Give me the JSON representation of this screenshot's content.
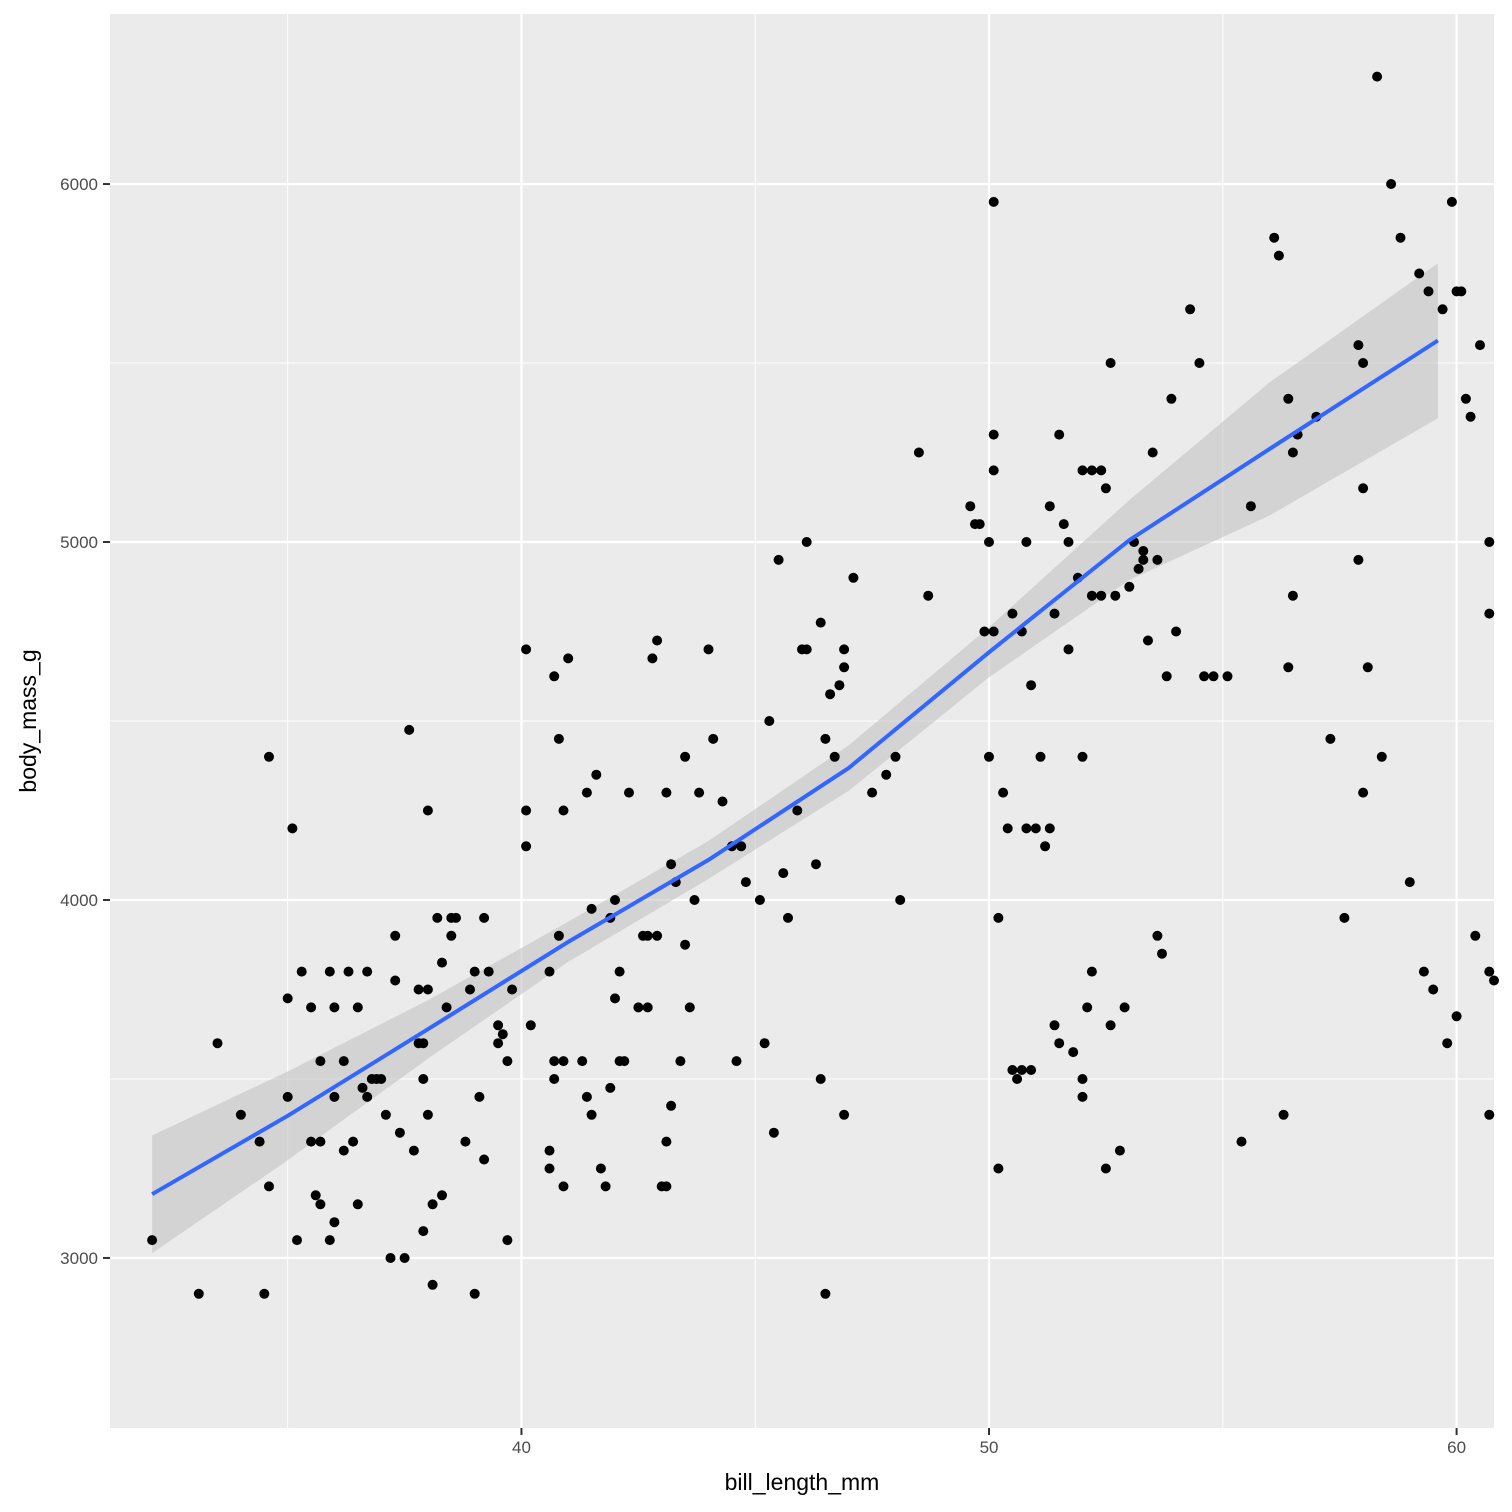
{
  "chart_data": {
    "type": "scatter",
    "xlabel": "bill_length_mm",
    "ylabel": "body_mass_g",
    "xlim": [
      31.2,
      60.8
    ],
    "ylim": [
      2525,
      6475
    ],
    "x_ticks": [
      40,
      50,
      60
    ],
    "y_ticks": [
      3000,
      4000,
      5000,
      6000
    ],
    "x_minor_ticks": [
      35,
      45,
      55
    ],
    "y_minor_ticks": [
      3500,
      4500,
      5500
    ],
    "grid": true,
    "colors": {
      "panel": "#ebebeb",
      "grid": "#ffffff",
      "points": "#000000",
      "smooth_line": "#3366ff",
      "ribbon": "#bfbfbf"
    },
    "smooth": {
      "method": "linear",
      "x": [
        32.1,
        35.0,
        38.0,
        41.0,
        44.0,
        47.0,
        50.0,
        53.0,
        56.0,
        59.6
      ],
      "y": [
        3178,
        3397,
        3639,
        3883,
        4112,
        4369,
        4692,
        5005,
        5260,
        5563
      ],
      "lower": [
        3013,
        3273,
        3557,
        3827,
        4059,
        4305,
        4622,
        4894,
        5074,
        5346
      ],
      "upper": [
        3342,
        3521,
        3720,
        3939,
        4165,
        4432,
        4762,
        5117,
        5446,
        5779
      ]
    },
    "points": [
      [
        32.1,
        3050
      ],
      [
        33.1,
        2900
      ],
      [
        33.5,
        3600
      ],
      [
        34.0,
        3400
      ],
      [
        34.4,
        3325
      ],
      [
        34.5,
        2900
      ],
      [
        34.6,
        4400
      ],
      [
        34.6,
        3200
      ],
      [
        35.0,
        3450
      ],
      [
        35.0,
        3725
      ],
      [
        35.1,
        4200
      ],
      [
        35.2,
        3050
      ],
      [
        35.3,
        3800
      ],
      [
        35.5,
        3700
      ],
      [
        35.5,
        3325
      ],
      [
        35.6,
        3175
      ],
      [
        35.7,
        3150
      ],
      [
        35.7,
        3325
      ],
      [
        35.7,
        3550
      ],
      [
        35.9,
        3050
      ],
      [
        35.9,
        3800
      ],
      [
        36.0,
        3100
      ],
      [
        36.0,
        3450
      ],
      [
        36.0,
        3700
      ],
      [
        36.2,
        3550
      ],
      [
        36.2,
        3300
      ],
      [
        36.3,
        3800
      ],
      [
        36.4,
        3325
      ],
      [
        36.5,
        3150
      ],
      [
        36.5,
        3700
      ],
      [
        36.6,
        3475
      ],
      [
        36.7,
        3450
      ],
      [
        36.7,
        3800
      ],
      [
        36.8,
        3500
      ],
      [
        36.9,
        3500
      ],
      [
        37.0,
        3500
      ],
      [
        37.1,
        3400
      ],
      [
        37.2,
        3000
      ],
      [
        37.3,
        3900
      ],
      [
        37.3,
        3775
      ],
      [
        37.4,
        3350
      ],
      [
        37.5,
        3000
      ],
      [
        37.6,
        4475
      ],
      [
        37.7,
        3300
      ],
      [
        37.8,
        3750
      ],
      [
        37.8,
        3600
      ],
      [
        37.9,
        3600
      ],
      [
        37.9,
        3075
      ],
      [
        37.9,
        3500
      ],
      [
        38.0,
        3400
      ],
      [
        38.0,
        4250
      ],
      [
        38.0,
        3750
      ],
      [
        38.1,
        3150
      ],
      [
        38.1,
        2925
      ],
      [
        38.2,
        3950
      ],
      [
        38.3,
        3825
      ],
      [
        38.3,
        3175
      ],
      [
        38.4,
        3700
      ],
      [
        38.5,
        3900
      ],
      [
        38.5,
        3950
      ],
      [
        38.6,
        3950
      ],
      [
        38.8,
        3325
      ],
      [
        38.9,
        3750
      ],
      [
        39.0,
        2900
      ],
      [
        39.0,
        3800
      ],
      [
        39.1,
        3450
      ],
      [
        39.2,
        3275
      ],
      [
        39.2,
        3950
      ],
      [
        39.3,
        3800
      ],
      [
        39.5,
        3650
      ],
      [
        39.5,
        3600
      ],
      [
        39.6,
        3625
      ],
      [
        39.7,
        3050
      ],
      [
        39.7,
        3550
      ],
      [
        39.8,
        3750
      ],
      [
        40.1,
        4700
      ],
      [
        40.1,
        4250
      ],
      [
        40.1,
        4150
      ],
      [
        40.2,
        3650
      ],
      [
        40.6,
        3300
      ],
      [
        40.6,
        3250
      ],
      [
        40.6,
        3800
      ],
      [
        40.7,
        3500
      ],
      [
        40.7,
        3550
      ],
      [
        40.7,
        4625
      ],
      [
        40.8,
        4450
      ],
      [
        40.8,
        3900
      ],
      [
        40.9,
        3550
      ],
      [
        40.9,
        3200
      ],
      [
        40.9,
        4250
      ],
      [
        41.0,
        4675
      ],
      [
        41.3,
        3550
      ],
      [
        41.4,
        4300
      ],
      [
        41.4,
        3450
      ],
      [
        41.5,
        3400
      ],
      [
        41.5,
        3975
      ],
      [
        41.6,
        4350
      ],
      [
        41.7,
        3250
      ],
      [
        41.8,
        3200
      ],
      [
        41.9,
        3475
      ],
      [
        41.9,
        3950
      ],
      [
        42.0,
        4000
      ],
      [
        42.0,
        3725
      ],
      [
        42.1,
        3800
      ],
      [
        42.1,
        3550
      ],
      [
        42.2,
        3550
      ],
      [
        42.3,
        4300
      ],
      [
        42.5,
        3700
      ],
      [
        42.6,
        3900
      ],
      [
        42.7,
        3900
      ],
      [
        42.7,
        3700
      ],
      [
        42.8,
        4675
      ],
      [
        42.9,
        3900
      ],
      [
        42.9,
        4725
      ],
      [
        43.0,
        3200
      ],
      [
        43.1,
        3200
      ],
      [
        43.1,
        4300
      ],
      [
        43.1,
        3325
      ],
      [
        43.2,
        3425
      ],
      [
        43.2,
        4100
      ],
      [
        43.3,
        4050
      ],
      [
        43.4,
        3550
      ],
      [
        43.5,
        4400
      ],
      [
        43.5,
        3875
      ],
      [
        43.6,
        3700
      ],
      [
        43.7,
        4000
      ],
      [
        43.8,
        4300
      ],
      [
        44.0,
        4700
      ],
      [
        44.1,
        4450
      ],
      [
        44.3,
        4275
      ],
      [
        44.5,
        4150
      ],
      [
        44.6,
        3550
      ],
      [
        44.7,
        4150
      ],
      [
        44.8,
        4050
      ],
      [
        45.1,
        4000
      ],
      [
        45.2,
        3600
      ],
      [
        45.3,
        4500
      ],
      [
        45.4,
        3350
      ],
      [
        45.5,
        4950
      ],
      [
        45.6,
        4075
      ],
      [
        45.7,
        3950
      ],
      [
        45.9,
        4250
      ],
      [
        46.0,
        4700
      ],
      [
        46.1,
        4700
      ],
      [
        46.1,
        5000
      ],
      [
        46.3,
        4100
      ],
      [
        46.4,
        4775
      ],
      [
        46.4,
        3500
      ],
      [
        46.5,
        2900
      ],
      [
        46.5,
        4450
      ],
      [
        46.6,
        4575
      ],
      [
        46.7,
        4400
      ],
      [
        46.8,
        4600
      ],
      [
        46.9,
        4700
      ],
      [
        46.9,
        3400
      ],
      [
        46.9,
        4650
      ],
      [
        47.1,
        4900
      ],
      [
        47.5,
        4300
      ],
      [
        47.8,
        4350
      ],
      [
        48.0,
        4400
      ],
      [
        48.1,
        4000
      ],
      [
        48.5,
        5250
      ],
      [
        48.7,
        4850
      ],
      [
        49.6,
        5100
      ],
      [
        49.7,
        5050
      ],
      [
        49.8,
        5050
      ],
      [
        49.9,
        4750
      ],
      [
        50.0,
        4400
      ],
      [
        50.0,
        5000
      ],
      [
        50.1,
        4750
      ],
      [
        50.1,
        5950
      ],
      [
        50.1,
        5300
      ],
      [
        50.1,
        5200
      ],
      [
        50.2,
        3950
      ],
      [
        50.2,
        3250
      ],
      [
        50.3,
        4300
      ],
      [
        50.4,
        4200
      ],
      [
        50.5,
        4800
      ],
      [
        50.5,
        3525
      ],
      [
        50.6,
        3500
      ],
      [
        50.7,
        4750
      ],
      [
        50.7,
        3525
      ],
      [
        50.8,
        5000
      ],
      [
        50.8,
        4200
      ],
      [
        50.9,
        4600
      ],
      [
        50.9,
        3525
      ],
      [
        51.0,
        4200
      ],
      [
        51.1,
        4400
      ],
      [
        51.2,
        4150
      ],
      [
        51.3,
        4200
      ],
      [
        51.3,
        5100
      ],
      [
        51.4,
        4800
      ],
      [
        51.4,
        3650
      ],
      [
        51.5,
        5300
      ],
      [
        51.5,
        3600
      ],
      [
        51.6,
        5050
      ],
      [
        51.7,
        4700
      ],
      [
        51.7,
        5000
      ],
      [
        51.8,
        3575
      ],
      [
        51.9,
        4900
      ],
      [
        52.0,
        3500
      ],
      [
        52.0,
        3450
      ],
      [
        52.0,
        4400
      ],
      [
        52.0,
        5200
      ],
      [
        52.1,
        3700
      ],
      [
        52.2,
        3800
      ],
      [
        52.2,
        4850
      ],
      [
        52.2,
        5200
      ],
      [
        52.4,
        5200
      ],
      [
        52.4,
        4850
      ],
      [
        52.5,
        5150
      ],
      [
        52.5,
        3250
      ],
      [
        52.6,
        3650
      ],
      [
        52.6,
        5500
      ],
      [
        52.7,
        4850
      ],
      [
        52.8,
        3300
      ],
      [
        52.9,
        3700
      ],
      [
        53.0,
        4875
      ],
      [
        53.1,
        5000
      ],
      [
        53.2,
        4925
      ],
      [
        53.3,
        4975
      ],
      [
        53.3,
        4950
      ],
      [
        53.4,
        4725
      ],
      [
        53.5,
        5250
      ],
      [
        53.6,
        3900
      ],
      [
        53.6,
        4950
      ],
      [
        53.7,
        3850
      ],
      [
        53.8,
        4625
      ],
      [
        53.9,
        5400
      ],
      [
        54.0,
        4750
      ],
      [
        54.3,
        5650
      ],
      [
        54.5,
        5500
      ],
      [
        54.6,
        4625
      ],
      [
        54.8,
        4625
      ],
      [
        55.1,
        4625
      ],
      [
        55.4,
        3325
      ],
      [
        55.6,
        5100
      ],
      [
        56.1,
        5850
      ],
      [
        56.2,
        5800
      ],
      [
        56.3,
        3400
      ],
      [
        56.4,
        5400
      ],
      [
        56.4,
        4650
      ],
      [
        56.5,
        5250
      ],
      [
        56.5,
        4850
      ],
      [
        56.6,
        5300
      ],
      [
        57.0,
        5350
      ],
      [
        57.3,
        4450
      ],
      [
        57.6,
        3950
      ],
      [
        57.9,
        5550
      ],
      [
        57.9,
        4950
      ],
      [
        58.0,
        5150
      ],
      [
        58.0,
        4300
      ],
      [
        58.0,
        5500
      ],
      [
        58.1,
        4650
      ],
      [
        58.3,
        6300
      ],
      [
        58.4,
        4400
      ],
      [
        58.6,
        6000
      ],
      [
        58.8,
        5850
      ],
      [
        59.0,
        4050
      ],
      [
        59.2,
        5750
      ],
      [
        59.3,
        3800
      ],
      [
        59.4,
        5700
      ],
      [
        59.5,
        3750
      ],
      [
        59.7,
        5650
      ],
      [
        59.8,
        3600
      ],
      [
        59.9,
        5950
      ],
      [
        60.0,
        5700
      ],
      [
        60.0,
        3675
      ],
      [
        60.1,
        5700
      ],
      [
        60.2,
        5400
      ],
      [
        60.3,
        5350
      ],
      [
        60.4,
        3900
      ],
      [
        60.5,
        5550
      ],
      [
        60.7,
        3800
      ],
      [
        60.7,
        3400
      ],
      [
        60.7,
        4800
      ],
      [
        60.7,
        5000
      ],
      [
        60.8,
        3775
      ]
    ]
  }
}
